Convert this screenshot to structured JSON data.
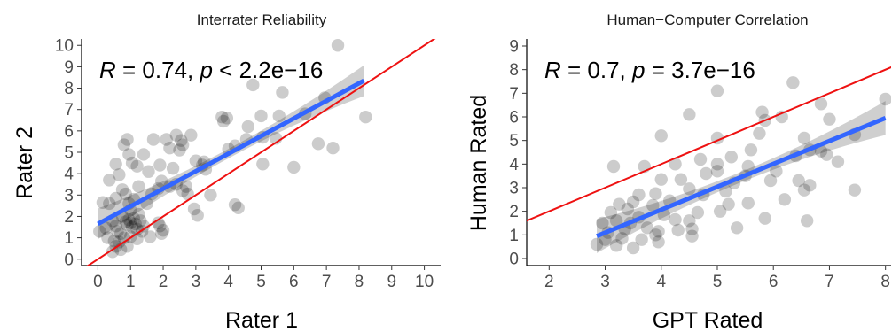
{
  "chart_data": [
    {
      "type": "scatter",
      "title": "Interrater Reliability",
      "xlabel": "Rater 1",
      "ylabel": "Rater 2",
      "xlim": [
        -0.5,
        10.5
      ],
      "ylim": [
        -0.3,
        10.3
      ],
      "x_ticks": [
        0,
        1,
        2,
        3,
        4,
        5,
        6,
        7,
        8,
        9,
        10
      ],
      "y_ticks": [
        0,
        1,
        2,
        3,
        4,
        5,
        6,
        7,
        8,
        9,
        10
      ],
      "annotation": {
        "r_sym": "R",
        "r_val": " = 0.74, ",
        "p_sym": "p",
        "p_val": " < 2.2e−16"
      },
      "point_color": "#000000",
      "regression": {
        "x": [
          0,
          8.15
        ],
        "y": [
          1.65,
          8.35
        ],
        "color": "#3366ff",
        "band_color": "#bfbfbf"
      },
      "identity_line": {
        "color": "#ee1111",
        "slope": 1,
        "intercept": 0
      },
      "points": [
        [
          7.35,
          10.0
        ],
        [
          4.75,
          8.15
        ],
        [
          6.95,
          7.55
        ],
        [
          5.65,
          7.8
        ],
        [
          8.2,
          6.65
        ],
        [
          6.35,
          6.8
        ],
        [
          3.8,
          6.65
        ],
        [
          3.95,
          6.6
        ],
        [
          3.85,
          6.45
        ],
        [
          4.6,
          6.2
        ],
        [
          5.55,
          6.7
        ],
        [
          5.0,
          6.7
        ],
        [
          7.2,
          5.2
        ],
        [
          5.45,
          5.65
        ],
        [
          5.05,
          5.7
        ],
        [
          4.55,
          5.6
        ],
        [
          4.2,
          5.3
        ],
        [
          4.0,
          5.15
        ],
        [
          6.75,
          5.4
        ],
        [
          6.0,
          4.3
        ],
        [
          5.05,
          4.45
        ],
        [
          4.2,
          2.55
        ],
        [
          4.3,
          2.4
        ],
        [
          3.45,
          3.0
        ],
        [
          3.05,
          2.05
        ],
        [
          2.95,
          2.35
        ],
        [
          3.25,
          4.55
        ],
        [
          3.2,
          4.4
        ],
        [
          3.0,
          4.6
        ],
        [
          3.3,
          4.2
        ],
        [
          2.85,
          5.8
        ],
        [
          2.55,
          5.55
        ],
        [
          2.4,
          5.8
        ],
        [
          2.6,
          5.35
        ],
        [
          2.5,
          5.1
        ],
        [
          2.2,
          5.2
        ],
        [
          2.1,
          5.6
        ],
        [
          1.7,
          5.6
        ],
        [
          1.4,
          4.9
        ],
        [
          1.9,
          4.4
        ],
        [
          1.55,
          4.1
        ],
        [
          2.3,
          4.25
        ],
        [
          2.6,
          3.2
        ],
        [
          2.75,
          3.05
        ],
        [
          2.7,
          3.4
        ],
        [
          2.4,
          3.5
        ],
        [
          2.2,
          3.4
        ],
        [
          1.95,
          3.65
        ],
        [
          1.85,
          3.3
        ],
        [
          1.65,
          3.05
        ],
        [
          1.5,
          2.6
        ],
        [
          1.1,
          2.8
        ],
        [
          1.25,
          3.4
        ],
        [
          1.2,
          4.35
        ],
        [
          1.05,
          4.5
        ],
        [
          0.8,
          5.35
        ],
        [
          0.9,
          5.6
        ],
        [
          0.95,
          4.9
        ],
        [
          0.55,
          4.45
        ],
        [
          0.65,
          3.95
        ],
        [
          0.35,
          3.7
        ],
        [
          0.75,
          3.25
        ],
        [
          0.85,
          3.05
        ],
        [
          0.55,
          2.85
        ],
        [
          0.35,
          2.6
        ],
        [
          0.15,
          2.65
        ],
        [
          0.05,
          1.3
        ],
        [
          0.25,
          1.45
        ],
        [
          0.45,
          1.8
        ],
        [
          0.55,
          1.55
        ],
        [
          0.6,
          1.3
        ],
        [
          0.7,
          1.2
        ],
        [
          0.75,
          2.0
        ],
        [
          0.85,
          1.75
        ],
        [
          0.9,
          1.6
        ],
        [
          0.95,
          1.85
        ],
        [
          1.0,
          1.7
        ],
        [
          1.05,
          1.5
        ],
        [
          1.1,
          1.9
        ],
        [
          1.15,
          1.65
        ],
        [
          1.2,
          1.4
        ],
        [
          1.25,
          2.1
        ],
        [
          1.3,
          1.8
        ],
        [
          1.4,
          1.55
        ],
        [
          0.5,
          0.85
        ],
        [
          0.55,
          0.6
        ],
        [
          0.65,
          0.8
        ],
        [
          0.7,
          0.45
        ],
        [
          0.8,
          1.0
        ],
        [
          0.9,
          0.6
        ],
        [
          1.0,
          1.05
        ],
        [
          1.2,
          0.95
        ],
        [
          1.35,
          1.3
        ],
        [
          0.45,
          0.35
        ],
        [
          1.0,
          2.3
        ],
        [
          0.95,
          2.6
        ],
        [
          1.9,
          1.55
        ],
        [
          2.0,
          1.35
        ],
        [
          1.95,
          1.2
        ],
        [
          1.85,
          1.7
        ],
        [
          0.3,
          1.0
        ],
        [
          1.6,
          1.05
        ]
      ]
    },
    {
      "type": "scatter",
      "title": "Human−Computer Correlation",
      "xlabel": "GPT Rated",
      "ylabel": "Human Rated",
      "xlim": [
        1.6,
        8.1
      ],
      "ylim": [
        -0.3,
        9.3
      ],
      "x_ticks": [
        2,
        3,
        4,
        5,
        6,
        7,
        8
      ],
      "y_ticks": [
        0,
        1,
        2,
        3,
        4,
        5,
        6,
        7,
        8,
        9
      ],
      "annotation": {
        "r_sym": "R",
        "r_val": " = 0.7, ",
        "p_sym": "p",
        "p_val": " = 3.7e−16"
      },
      "point_color": "#000000",
      "regression": {
        "x": [
          2.85,
          8.0
        ],
        "y": [
          0.95,
          5.95
        ],
        "color": "#3366ff",
        "band_color": "#bfbfbf"
      },
      "identity_line": {
        "color": "#ee1111",
        "slope": 1,
        "intercept": 0
      },
      "points": [
        [
          6.35,
          7.45
        ],
        [
          5.0,
          7.1
        ],
        [
          8.0,
          6.75
        ],
        [
          6.85,
          6.55
        ],
        [
          4.5,
          6.1
        ],
        [
          5.8,
          6.2
        ],
        [
          5.85,
          5.85
        ],
        [
          6.15,
          6.0
        ],
        [
          7.0,
          5.9
        ],
        [
          5.75,
          5.3
        ],
        [
          5.0,
          5.1
        ],
        [
          4.0,
          5.2
        ],
        [
          6.55,
          5.1
        ],
        [
          7.45,
          5.25
        ],
        [
          6.85,
          4.55
        ],
        [
          6.65,
          4.6
        ],
        [
          6.95,
          4.4
        ],
        [
          6.4,
          4.35
        ],
        [
          5.6,
          4.6
        ],
        [
          5.25,
          4.3
        ],
        [
          5.0,
          4.0
        ],
        [
          4.7,
          4.2
        ],
        [
          4.25,
          4.0
        ],
        [
          3.7,
          3.9
        ],
        [
          3.15,
          3.9
        ],
        [
          4.8,
          3.6
        ],
        [
          5.0,
          3.7
        ],
        [
          5.55,
          3.9
        ],
        [
          5.5,
          3.5
        ],
        [
          6.05,
          3.7
        ],
        [
          5.95,
          3.3
        ],
        [
          6.45,
          3.3
        ],
        [
          6.55,
          2.9
        ],
        [
          6.65,
          3.1
        ],
        [
          7.45,
          2.9
        ],
        [
          7.15,
          4.1
        ],
        [
          5.3,
          3.2
        ],
        [
          5.15,
          2.85
        ],
        [
          4.35,
          3.35
        ],
        [
          4.5,
          2.95
        ],
        [
          4.0,
          3.35
        ],
        [
          3.9,
          2.75
        ],
        [
          4.15,
          2.45
        ],
        [
          3.5,
          2.4
        ],
        [
          3.6,
          2.7
        ],
        [
          3.85,
          2.25
        ],
        [
          3.25,
          2.3
        ],
        [
          3.1,
          1.95
        ],
        [
          3.2,
          1.6
        ],
        [
          2.95,
          1.5
        ],
        [
          3.45,
          1.5
        ],
        [
          3.35,
          1.25
        ],
        [
          3.05,
          1.1
        ],
        [
          3.3,
          0.85
        ],
        [
          3.65,
          0.8
        ],
        [
          3.9,
          1.0
        ],
        [
          3.95,
          0.7
        ],
        [
          4.3,
          1.2
        ],
        [
          4.5,
          1.6
        ],
        [
          4.55,
          1.25
        ],
        [
          4.55,
          0.95
        ],
        [
          4.65,
          1.95
        ],
        [
          4.75,
          2.7
        ],
        [
          5.05,
          2.0
        ],
        [
          5.2,
          2.3
        ],
        [
          5.35,
          1.3
        ],
        [
          5.55,
          2.35
        ],
        [
          5.85,
          1.7
        ],
        [
          6.2,
          2.5
        ],
        [
          6.6,
          1.6
        ],
        [
          4.05,
          1.85
        ],
        [
          3.75,
          1.3
        ],
        [
          3.6,
          1.75
        ],
        [
          3.4,
          2.1
        ],
        [
          2.85,
          0.6
        ],
        [
          3.0,
          0.8
        ],
        [
          3.2,
          0.55
        ],
        [
          3.5,
          0.45
        ],
        [
          3.95,
          1.15
        ],
        [
          4.25,
          1.65
        ]
      ]
    }
  ]
}
